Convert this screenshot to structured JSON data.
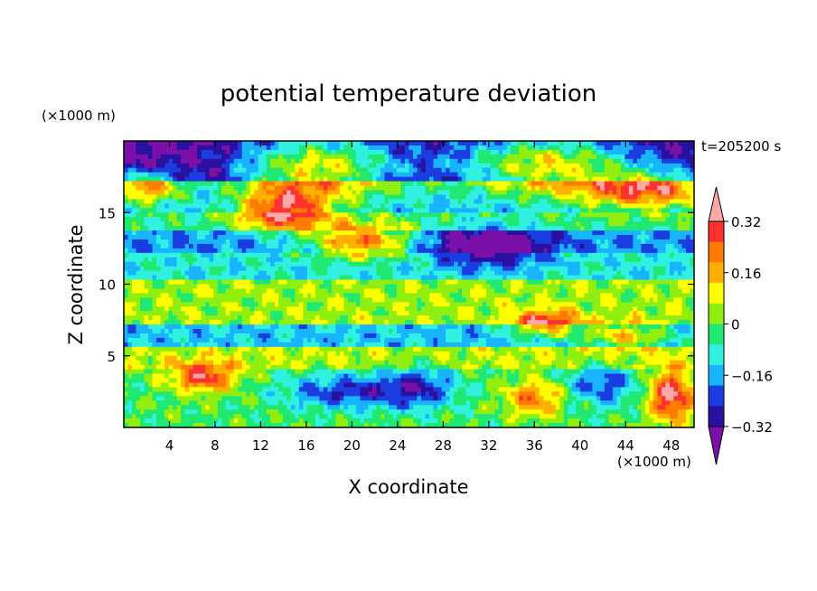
{
  "chart_data": {
    "type": "heatmap",
    "title": "potential temperature deviation",
    "xlabel": "X coordinate",
    "ylabel": "Z coordinate",
    "x_unit": "(×1000 m)",
    "y_unit": "(×1000 m)",
    "time_label": "t=205200 s",
    "xlim": [
      0,
      50
    ],
    "ylim": [
      0,
      20
    ],
    "x_ticks": [
      4,
      8,
      12,
      16,
      20,
      24,
      28,
      32,
      36,
      40,
      44,
      48
    ],
    "y_ticks": [
      5,
      10,
      15
    ],
    "colorbar": {
      "levels": [
        -0.4,
        -0.32,
        -0.24,
        -0.16,
        -0.08,
        0,
        0.08,
        0.16,
        0.24,
        0.32,
        0.4
      ],
      "tick_labels": [
        "0.32",
        "0.16",
        "0",
        "−0.16",
        "−0.32"
      ],
      "tick_values": [
        0.32,
        0.16,
        0,
        -0.16,
        -0.32
      ],
      "colors": [
        "#7a10a8",
        "#2a10a0",
        "#1a3de0",
        "#18b4ff",
        "#30f0e0",
        "#20e870",
        "#90ee10",
        "#ffff00",
        "#ffb000",
        "#ff7a00",
        "#ff3030",
        "#ffa8a8"
      ]
    }
  }
}
